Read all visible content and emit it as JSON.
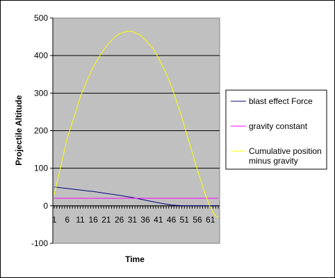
{
  "chart_data": {
    "type": "line",
    "title": "",
    "xlabel": "Time",
    "ylabel": "Projectile Altitude",
    "ylim": [
      -100,
      500
    ],
    "yticks": [
      "500",
      "400",
      "300",
      "200",
      "100",
      "0",
      "-100"
    ],
    "xticks": [
      "1",
      "6",
      "11",
      "16",
      "21",
      "26",
      "31",
      "36",
      "41",
      "46",
      "51",
      "56",
      "61"
    ],
    "x_range": [
      1,
      64
    ],
    "grid": "horizontal",
    "plot_background": "#c0c0c0",
    "legend_position": "right",
    "series": [
      {
        "name": "blast effect Force",
        "color": "#000080",
        "x": [
          1,
          6,
          11,
          16,
          21,
          26,
          31,
          36,
          41,
          46,
          51,
          56,
          61,
          64
        ],
        "values": [
          50,
          46,
          42,
          38,
          33,
          28,
          22,
          15,
          8,
          2,
          0,
          0,
          0,
          0
        ]
      },
      {
        "name": "gravity constant",
        "color": "#ff00ff",
        "x": [
          1,
          64
        ],
        "values": [
          20,
          20
        ]
      },
      {
        "name": "Cumulative position minus gravity",
        "color": "#ffff00",
        "x": [
          1,
          3,
          6,
          9,
          11,
          14,
          16,
          19,
          21,
          24,
          26,
          29,
          31,
          34,
          36,
          39,
          41,
          44,
          46,
          49,
          51,
          54,
          56,
          59,
          61,
          63,
          64
        ],
        "values": [
          30,
          90,
          180,
          245,
          290,
          340,
          370,
          405,
          425,
          448,
          458,
          465,
          464,
          455,
          442,
          418,
          395,
          352,
          318,
          258,
          212,
          142,
          96,
          30,
          -5,
          -28,
          -30
        ]
      }
    ]
  }
}
